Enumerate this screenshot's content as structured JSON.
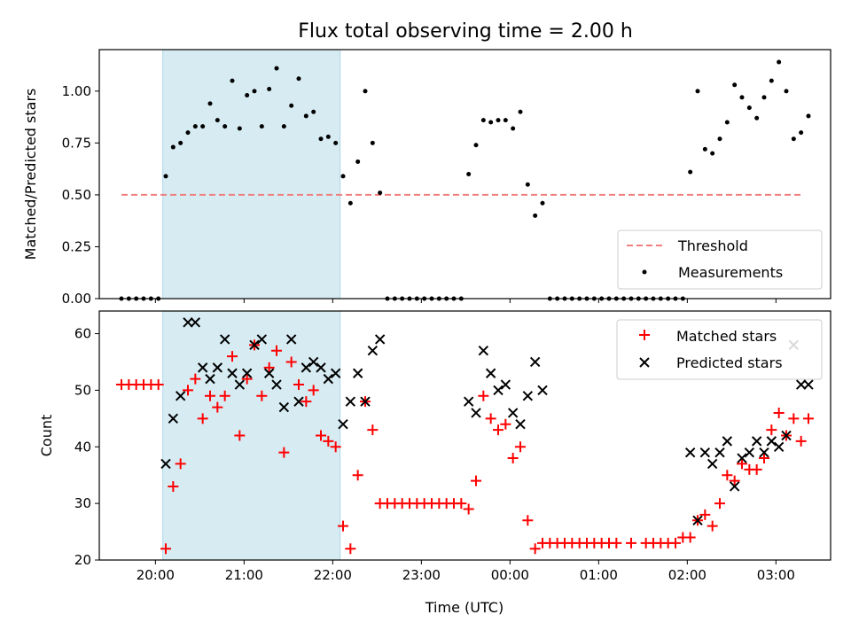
{
  "title": "Flux total observing time = 2.00 h",
  "colors": {
    "highlight": "#add8e6",
    "threshold": "#f08080",
    "matched": "#ff0000",
    "predicted": "#000000"
  },
  "chart_data": [
    {
      "type": "scatter",
      "ylabel": "Matched/Predicted stars",
      "xlim": [
        "19:22",
        "03:37"
      ],
      "ylim": [
        0,
        1.2
      ],
      "yticks": [
        "0.00",
        "0.25",
        "0.50",
        "0.75",
        "1.00"
      ],
      "xticks": [
        "20:00",
        "21:00",
        "22:00",
        "23:00",
        "00:00",
        "01:00",
        "02:00",
        "03:00"
      ],
      "highlight_span": [
        "20:05",
        "22:05"
      ],
      "threshold": {
        "name": "Threshold",
        "value": 0.5,
        "x": [
          "19:37",
          "03:17"
        ]
      },
      "series": [
        {
          "name": "Measurements",
          "points": [
            [
              "19:37",
              0
            ],
            [
              "19:42",
              0
            ],
            [
              "19:47",
              0
            ],
            [
              "19:52",
              0
            ],
            [
              "19:57",
              0
            ],
            [
              "20:02",
              0
            ],
            [
              "20:07",
              0.59
            ],
            [
              "20:12",
              0.73
            ],
            [
              "20:17",
              0.75
            ],
            [
              "20:22",
              0.8
            ],
            [
              "20:27",
              0.83
            ],
            [
              "20:32",
              0.83
            ],
            [
              "20:37",
              0.94
            ],
            [
              "20:42",
              0.86
            ],
            [
              "20:47",
              0.83
            ],
            [
              "20:52",
              1.05
            ],
            [
              "20:57",
              0.82
            ],
            [
              "21:02",
              0.98
            ],
            [
              "21:07",
              1.0
            ],
            [
              "21:12",
              0.83
            ],
            [
              "21:17",
              1.01
            ],
            [
              "21:22",
              1.11
            ],
            [
              "21:27",
              0.83
            ],
            [
              "21:32",
              0.93
            ],
            [
              "21:37",
              1.06
            ],
            [
              "21:42",
              0.88
            ],
            [
              "21:47",
              0.9
            ],
            [
              "21:52",
              0.77
            ],
            [
              "21:57",
              0.78
            ],
            [
              "22:02",
              0.75
            ],
            [
              "22:07",
              0.59
            ],
            [
              "22:12",
              0.46
            ],
            [
              "22:17",
              0.66
            ],
            [
              "22:22",
              1.0
            ],
            [
              "22:27",
              0.75
            ],
            [
              "22:32",
              0.51
            ],
            [
              "22:37",
              0
            ],
            [
              "22:42",
              0
            ],
            [
              "22:47",
              0
            ],
            [
              "22:52",
              0
            ],
            [
              "22:57",
              0
            ],
            [
              "23:02",
              0
            ],
            [
              "23:07",
              0
            ],
            [
              "23:12",
              0
            ],
            [
              "23:17",
              0
            ],
            [
              "23:22",
              0
            ],
            [
              "23:27",
              0
            ],
            [
              "23:32",
              0.6
            ],
            [
              "23:37",
              0.74
            ],
            [
              "23:42",
              0.86
            ],
            [
              "23:47",
              0.85
            ],
            [
              "23:52",
              0.86
            ],
            [
              "23:57",
              0.86
            ],
            [
              "00:02",
              0.82
            ],
            [
              "00:07",
              0.9
            ],
            [
              "00:12",
              0.55
            ],
            [
              "00:17",
              0.4
            ],
            [
              "00:22",
              0.46
            ],
            [
              "00:27",
              0
            ],
            [
              "00:32",
              0
            ],
            [
              "00:37",
              0
            ],
            [
              "00:42",
              0
            ],
            [
              "00:47",
              0
            ],
            [
              "00:52",
              0
            ],
            [
              "00:57",
              0
            ],
            [
              "01:02",
              0
            ],
            [
              "01:07",
              0
            ],
            [
              "01:12",
              0
            ],
            [
              "01:17",
              0
            ],
            [
              "01:22",
              0
            ],
            [
              "01:27",
              0
            ],
            [
              "01:32",
              0
            ],
            [
              "01:37",
              0
            ],
            [
              "01:42",
              0
            ],
            [
              "01:47",
              0
            ],
            [
              "01:52",
              0
            ],
            [
              "01:57",
              0
            ],
            [
              "02:02",
              0.61
            ],
            [
              "02:07",
              1.0
            ],
            [
              "02:12",
              0.72
            ],
            [
              "02:17",
              0.7
            ],
            [
              "02:22",
              0.77
            ],
            [
              "02:27",
              0.85
            ],
            [
              "02:32",
              1.03
            ],
            [
              "02:37",
              0.97
            ],
            [
              "02:42",
              0.92
            ],
            [
              "02:47",
              0.87
            ],
            [
              "02:52",
              0.97
            ],
            [
              "02:57",
              1.05
            ],
            [
              "03:02",
              1.14
            ],
            [
              "03:07",
              1.0
            ],
            [
              "03:12",
              0.77
            ],
            [
              "03:17",
              0.8
            ],
            [
              "03:22",
              0.88
            ]
          ]
        }
      ],
      "legend": {
        "position": "lower-right",
        "entries": [
          "Threshold",
          "Measurements"
        ]
      }
    },
    {
      "type": "scatter",
      "ylabel": "Count",
      "xlabel": "Time (UTC)",
      "xlim": [
        "19:22",
        "03:37"
      ],
      "ylim": [
        20,
        64
      ],
      "yticks": [
        "20",
        "30",
        "40",
        "50",
        "60"
      ],
      "xticks": [
        "20:00",
        "21:00",
        "22:00",
        "23:00",
        "00:00",
        "01:00",
        "02:00",
        "03:00"
      ],
      "highlight_span": [
        "20:05",
        "22:05"
      ],
      "series": [
        {
          "name": "Matched stars",
          "marker": "+",
          "points": [
            [
              "19:37",
              51
            ],
            [
              "19:42",
              51
            ],
            [
              "19:47",
              51
            ],
            [
              "19:52",
              51
            ],
            [
              "19:57",
              51
            ],
            [
              "20:02",
              51
            ],
            [
              "20:07",
              22
            ],
            [
              "20:12",
              33
            ],
            [
              "20:17",
              37
            ],
            [
              "20:22",
              50
            ],
            [
              "20:27",
              52
            ],
            [
              "20:32",
              45
            ],
            [
              "20:37",
              49
            ],
            [
              "20:42",
              47
            ],
            [
              "20:47",
              49
            ],
            [
              "20:52",
              56
            ],
            [
              "20:57",
              42
            ],
            [
              "21:02",
              52
            ],
            [
              "21:07",
              58
            ],
            [
              "21:12",
              49
            ],
            [
              "21:17",
              54
            ],
            [
              "21:22",
              57
            ],
            [
              "21:27",
              39
            ],
            [
              "21:32",
              55
            ],
            [
              "21:37",
              51
            ],
            [
              "21:42",
              48
            ],
            [
              "21:47",
              50
            ],
            [
              "21:52",
              42
            ],
            [
              "21:57",
              41
            ],
            [
              "22:02",
              40
            ],
            [
              "22:07",
              26
            ],
            [
              "22:12",
              22
            ],
            [
              "22:17",
              35
            ],
            [
              "22:22",
              48
            ],
            [
              "22:27",
              43
            ],
            [
              "22:32",
              30
            ],
            [
              "22:37",
              30
            ],
            [
              "22:42",
              30
            ],
            [
              "22:47",
              30
            ],
            [
              "22:52",
              30
            ],
            [
              "22:57",
              30
            ],
            [
              "23:02",
              30
            ],
            [
              "23:07",
              30
            ],
            [
              "23:12",
              30
            ],
            [
              "23:17",
              30
            ],
            [
              "23:22",
              30
            ],
            [
              "23:27",
              30
            ],
            [
              "23:32",
              29
            ],
            [
              "23:37",
              34
            ],
            [
              "23:42",
              49
            ],
            [
              "23:47",
              45
            ],
            [
              "23:52",
              43
            ],
            [
              "23:57",
              44
            ],
            [
              "00:02",
              38
            ],
            [
              "00:07",
              40
            ],
            [
              "00:12",
              27
            ],
            [
              "00:17",
              22
            ],
            [
              "00:22",
              23
            ],
            [
              "00:27",
              23
            ],
            [
              "00:32",
              23
            ],
            [
              "00:37",
              23
            ],
            [
              "00:42",
              23
            ],
            [
              "00:47",
              23
            ],
            [
              "00:52",
              23
            ],
            [
              "00:57",
              23
            ],
            [
              "01:02",
              23
            ],
            [
              "01:07",
              23
            ],
            [
              "01:12",
              23
            ],
            [
              "01:22",
              23
            ],
            [
              "01:32",
              23
            ],
            [
              "01:37",
              23
            ],
            [
              "01:42",
              23
            ],
            [
              "01:47",
              23
            ],
            [
              "01:52",
              23
            ],
            [
              "01:57",
              24
            ],
            [
              "02:02",
              24
            ],
            [
              "02:07",
              27
            ],
            [
              "02:12",
              28
            ],
            [
              "02:17",
              26
            ],
            [
              "02:22",
              30
            ],
            [
              "02:27",
              35
            ],
            [
              "02:32",
              34
            ],
            [
              "02:37",
              37
            ],
            [
              "02:42",
              36
            ],
            [
              "02:47",
              36
            ],
            [
              "02:52",
              38
            ],
            [
              "02:57",
              43
            ],
            [
              "03:02",
              46
            ],
            [
              "03:07",
              42
            ],
            [
              "03:12",
              45
            ],
            [
              "03:17",
              41
            ],
            [
              "03:22",
              45
            ]
          ]
        },
        {
          "name": "Predicted stars",
          "marker": "x",
          "points": [
            [
              "20:07",
              37
            ],
            [
              "20:12",
              45
            ],
            [
              "20:17",
              49
            ],
            [
              "20:22",
              62
            ],
            [
              "20:27",
              62
            ],
            [
              "20:32",
              54
            ],
            [
              "20:37",
              52
            ],
            [
              "20:42",
              54
            ],
            [
              "20:47",
              59
            ],
            [
              "20:52",
              53
            ],
            [
              "20:57",
              51
            ],
            [
              "21:02",
              53
            ],
            [
              "21:07",
              58
            ],
            [
              "21:12",
              59
            ],
            [
              "21:17",
              53
            ],
            [
              "21:22",
              51
            ],
            [
              "21:27",
              47
            ],
            [
              "21:32",
              59
            ],
            [
              "21:37",
              48
            ],
            [
              "21:42",
              54
            ],
            [
              "21:47",
              55
            ],
            [
              "21:52",
              54
            ],
            [
              "21:57",
              52
            ],
            [
              "22:02",
              53
            ],
            [
              "22:07",
              44
            ],
            [
              "22:12",
              48
            ],
            [
              "22:17",
              53
            ],
            [
              "22:22",
              48
            ],
            [
              "22:27",
              57
            ],
            [
              "22:32",
              59
            ],
            [
              "23:32",
              48
            ],
            [
              "23:37",
              46
            ],
            [
              "23:42",
              57
            ],
            [
              "23:47",
              53
            ],
            [
              "23:52",
              50
            ],
            [
              "23:57",
              51
            ],
            [
              "00:02",
              46
            ],
            [
              "00:07",
              44
            ],
            [
              "00:12",
              49
            ],
            [
              "00:17",
              55
            ],
            [
              "00:22",
              50
            ],
            [
              "02:02",
              39
            ],
            [
              "02:07",
              27
            ],
            [
              "02:12",
              39
            ],
            [
              "02:17",
              37
            ],
            [
              "02:22",
              39
            ],
            [
              "02:27",
              41
            ],
            [
              "02:32",
              33
            ],
            [
              "02:37",
              38
            ],
            [
              "02:42",
              39
            ],
            [
              "02:47",
              41
            ],
            [
              "02:52",
              39
            ],
            [
              "02:57",
              41
            ],
            [
              "03:02",
              40
            ],
            [
              "03:07",
              42
            ],
            [
              "03:12",
              58
            ],
            [
              "03:17",
              51
            ],
            [
              "03:22",
              51
            ]
          ]
        }
      ],
      "legend": {
        "position": "upper-right",
        "entries": [
          "Matched stars",
          "Predicted stars"
        ]
      }
    }
  ]
}
